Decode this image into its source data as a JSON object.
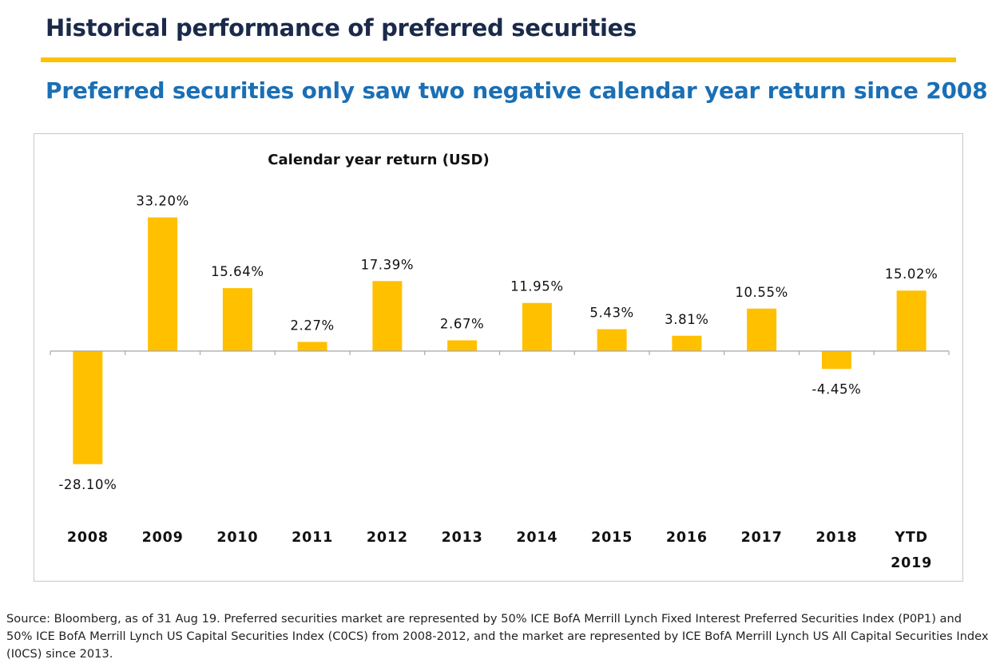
{
  "header": {
    "title": "Historical performance of preferred securities",
    "subtitle": "Preferred securities only saw two negative calendar year return since 2008"
  },
  "footer": {
    "source": "Source: Bloomberg, as of 31 Aug 19. Preferred securities market are represented by 50% ICE BofA Merrill Lynch Fixed Interest Preferred Securities Index (P0P1) and 50% ICE BofA Merrill Lynch US Capital Securities Index (C0CS) from 2008-2012, and the market are represented by ICE BofA Merrill Lynch US All Capital Securities Index (I0CS) since 2013."
  },
  "colors": {
    "bar": "#FFC000",
    "accent_rule": "#FFC000",
    "title": "#1b2a4a",
    "subtitle": "#1a6fb5",
    "axis": "#a6a6a6"
  },
  "chart_data": {
    "type": "bar",
    "title": "Calendar year return (USD)",
    "xlabel": "",
    "ylabel": "",
    "categories": [
      "2008",
      "2009",
      "2010",
      "2011",
      "2012",
      "2013",
      "2014",
      "2015",
      "2016",
      "2017",
      "2018",
      "YTD 2019"
    ],
    "values": [
      -28.1,
      33.2,
      15.64,
      2.27,
      17.39,
      2.67,
      11.95,
      5.43,
      3.81,
      10.55,
      -4.45,
      15.02
    ],
    "data_labels": [
      "-28.10%",
      "33.20%",
      "15.64%",
      "2.27%",
      "17.39%",
      "2.67%",
      "11.95%",
      "5.43%",
      "3.81%",
      "10.55%",
      "-4.45%",
      "15.02%"
    ],
    "ylim": [
      -40,
      40
    ],
    "grid": false,
    "legend": "none"
  }
}
